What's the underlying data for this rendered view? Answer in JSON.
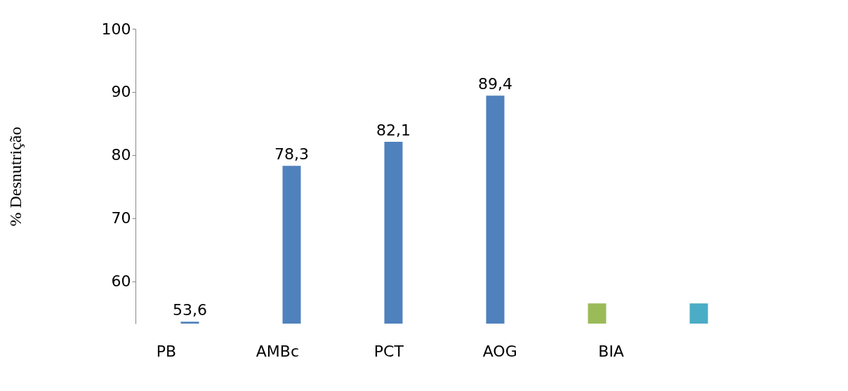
{
  "chart_data": {
    "type": "bar",
    "ylabel": "% Desnutrição",
    "categories": [
      null,
      null,
      null,
      null,
      null,
      null
    ],
    "values": [
      53.6,
      78.3,
      82.1,
      89.4,
      56.5,
      56.5
    ],
    "colors": [
      "#4f81bd",
      "#4f81bd",
      "#4f81bd",
      "#4f81bd",
      "#9bbb59",
      "#4bacc6"
    ],
    "value_labels": [
      "53,6",
      "78,3",
      "82,1",
      "89,4",
      null,
      null
    ],
    "ylim": [
      53.3,
      100
    ],
    "yticks": [
      60,
      70,
      80,
      90,
      100
    ],
    "grid": false,
    "legend": false,
    "annotations": [
      "PB",
      "AMBc",
      "PCT",
      "AOG",
      "BIA"
    ]
  }
}
